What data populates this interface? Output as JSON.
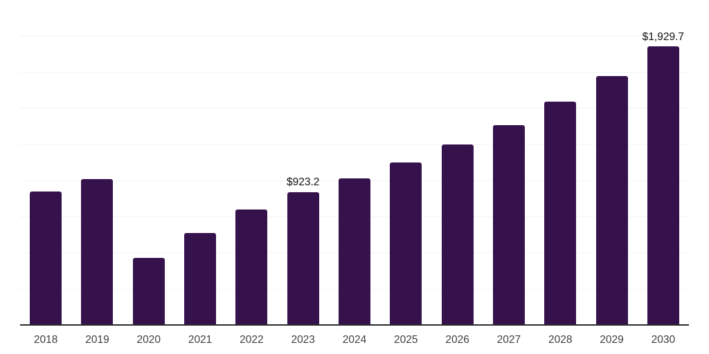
{
  "chart_data": {
    "type": "bar",
    "title": "",
    "categories": [
      "2018",
      "2019",
      "2020",
      "2021",
      "2022",
      "2023",
      "2024",
      "2025",
      "2026",
      "2027",
      "2028",
      "2029",
      "2030"
    ],
    "values": [
      925.3,
      1012.9,
      469.6,
      638.5,
      802.6,
      923.2,
      1016.0,
      1126.4,
      1251.8,
      1385.3,
      1547.7,
      1726.0,
      1929.7
    ],
    "data_labels": [
      "",
      "",
      "",
      "",
      "",
      "$923.2",
      "",
      "",
      "",
      "",
      "",
      "",
      "$1,929.7"
    ],
    "xlabel": "",
    "ylabel": "",
    "ylim": [
      0,
      2250
    ],
    "gridline_step": 250,
    "grid": "horizontal-only",
    "legend": "none",
    "y_tick_labels_visible": false
  },
  "style": {
    "bar_color": "#36124d",
    "gridline_color": "#f4f4f4",
    "axis_line_color": "#2b2b2b",
    "tick_label_color": "#3f3f3f",
    "data_label_color": "#111111",
    "background_color": "#ffffff"
  }
}
